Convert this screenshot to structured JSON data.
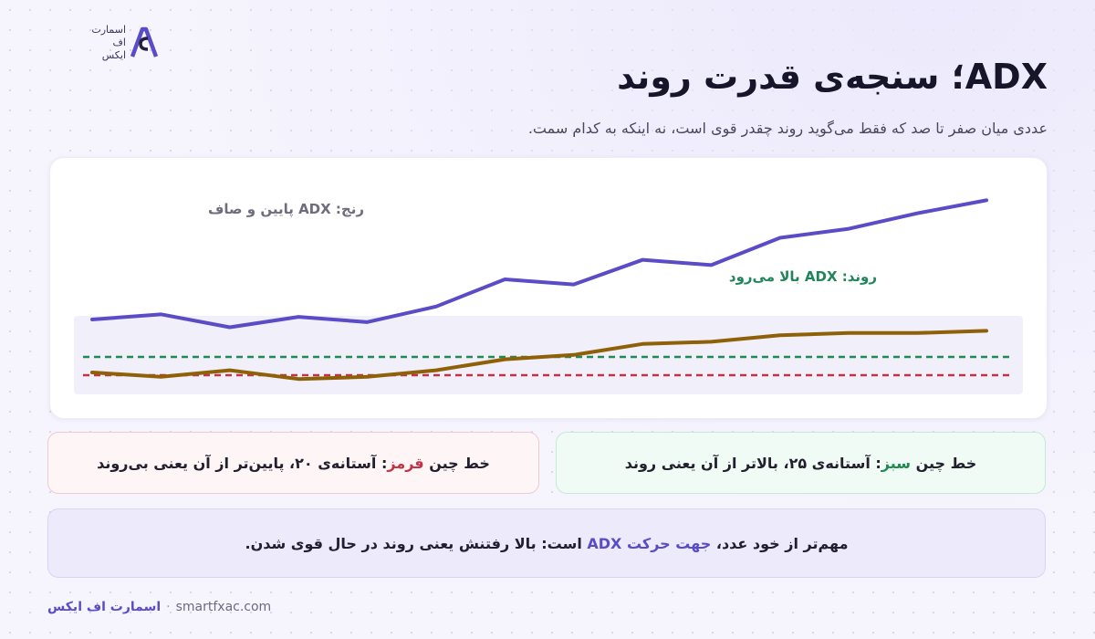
{
  "logo": {
    "line1": "اسمارت",
    "line2": "اف",
    "line3": "ایکس"
  },
  "title": "ADX؛ سنجه‌ی قدرت روند",
  "subtitle": "عددی میان صفر تا صد که فقط می‌گوید روند چقدر قوی است، نه اینکه به کدام سمت.",
  "chart": {
    "range_label": "رنج: ADX پایین و صاف",
    "trend_label": "روند: ADX بالا می‌رود"
  },
  "chart_data": {
    "type": "line",
    "series": [
      {
        "values": [
          0,
          4,
          -6,
          2,
          -2,
          10,
          31,
          27,
          46,
          42,
          63,
          70,
          82,
          92
        ]
      },
      {
        "values": [
          0,
          -2,
          1,
          -3,
          -2,
          1,
          6,
          8,
          13,
          14,
          17,
          18,
          18,
          19
        ]
      }
    ],
    "thresholds": [
      20,
      25
    ],
    "colors": {
      "price": "#5a4cc6",
      "adx": "#8e6109",
      "green_line": "#1f8a52",
      "red_line": "#c43244",
      "band": "#f1f0fa"
    }
  },
  "note_green": {
    "prefix": "خط چین",
    "color_word": "سبز",
    "suffix": ": آستانه‌ی ۲۵، بالاتر از آن یعنی روند"
  },
  "note_red": {
    "prefix": "خط چین",
    "color_word": "قرمز",
    "suffix": ": آستانه‌ی ۲۰، پایین‌تر از آن یعنی بی‌روند"
  },
  "note_main": {
    "prefix": "مهم‌تر از خود عدد،",
    "highlight": "جهت حرکت ADX",
    "suffix": "است: بالا رفتنش یعنی روند در حال قوی شدن."
  },
  "footer": {
    "brand": "اسمارت اف ایکس",
    "separator": "·",
    "url": "smartfxac.com"
  }
}
